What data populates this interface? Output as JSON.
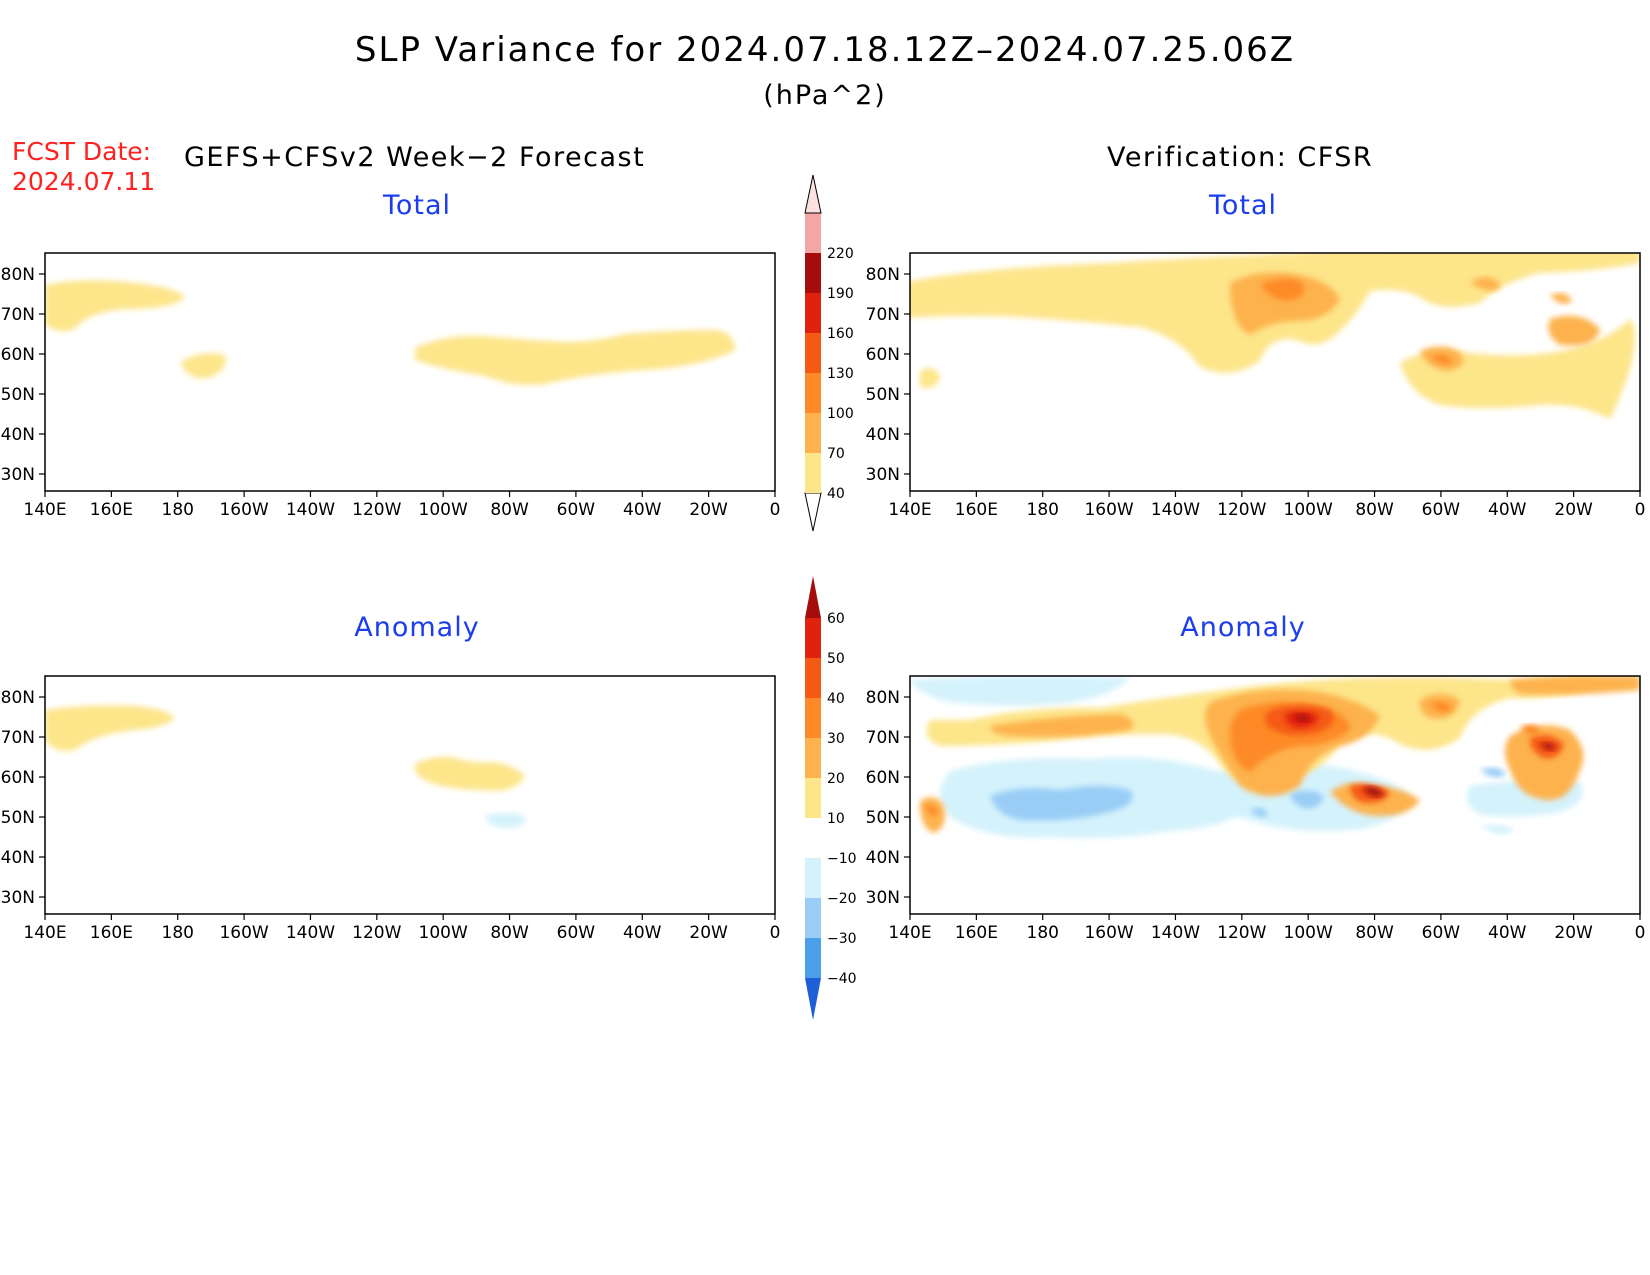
{
  "title": "SLP Variance for 2024.07.18.12Z–2024.07.25.06Z",
  "units": "(hPa^2)",
  "forecast_date_label": "FCST Date:",
  "forecast_date": "2024.07.11",
  "left_header": "GEFS+CFSv2 Week−2 Forecast",
  "right_header": "Verification: CFSR",
  "panels": {
    "forecast_total": "Total",
    "verification_total": "Total",
    "forecast_anomaly": "Anomaly",
    "verification_anomaly": "Anomaly"
  },
  "axes": {
    "lat_labels": [
      "80N",
      "70N",
      "60N",
      "50N",
      "40N",
      "30N"
    ],
    "lon_labels": [
      "140E",
      "160E",
      "180",
      "160W",
      "140W",
      "120W",
      "100W",
      "80W",
      "60W",
      "40W",
      "20W",
      "0"
    ]
  },
  "total_colorbar": {
    "levels": [
      "40",
      "70",
      "100",
      "130",
      "160",
      "190",
      "220"
    ],
    "colors": [
      "#fde58a",
      "#fdb24e",
      "#fd8a26",
      "#f55a13",
      "#e0210d",
      "#a50d0d",
      "#f4a6a6",
      "#fde1e1"
    ]
  },
  "anomaly_colorbar": {
    "levels": [
      "60",
      "50",
      "40",
      "30",
      "20",
      "10",
      "−10",
      "−20",
      "−30",
      "−40"
    ],
    "colors": [
      "#a50d0d",
      "#e0210d",
      "#f55a13",
      "#fd8a26",
      "#fdb24e",
      "#fde58a",
      "#ffffff",
      "#d4f2fc",
      "#99cdf6",
      "#4a9eea",
      "#1f5fd6"
    ]
  }
}
